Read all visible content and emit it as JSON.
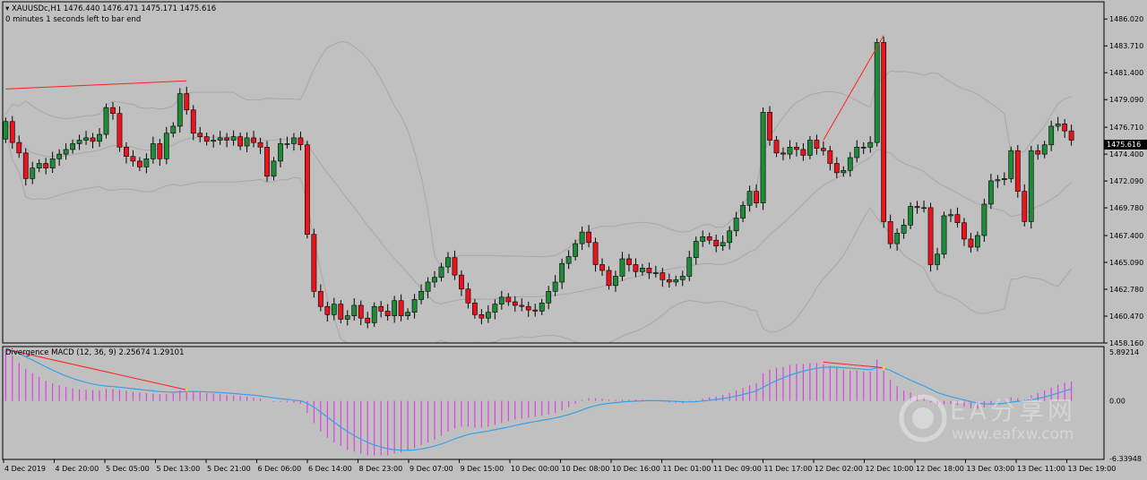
{
  "header": {
    "symbol_line": "XAUUSDc,H1  1476.440 1476.471 1475.171 1475.616",
    "bar_countdown": "0 minutes 1 seconds left to bar end"
  },
  "indicator": {
    "label": "Divergence MACD (12, 36, 9) 2.25674 1.29101"
  },
  "watermark": {
    "text": "EA分享网",
    "url": "www.eafxw.com"
  },
  "colors": {
    "background": "#c0c0c0",
    "bull": "#1f8a3a",
    "bear": "#e8141e",
    "macd_hist": "#e040e0",
    "signal": "#3aa0e8",
    "divergence": "#ff2020",
    "band": "#a8a8a8"
  },
  "chart_data": [
    {
      "type": "candlestick",
      "symbol": "XAUUSDc",
      "timeframe": "H1",
      "ylim": [
        1458.16,
        1487.5
      ],
      "price_ticks": [
        "1486.020",
        "1483.710",
        "1481.400",
        "1479.090",
        "1476.710",
        "1474.400",
        "1472.090",
        "1469.780",
        "1467.400",
        "1465.090",
        "1462.780",
        "1460.470",
        "1458.160"
      ],
      "time_ticks": [
        "4 Dec 2019",
        "4 Dec 20:00",
        "5 Dec 05:00",
        "5 Dec 13:00",
        "5 Dec 21:00",
        "6 Dec 06:00",
        "6 Dec 14:00",
        "8 Dec 23:00",
        "9 Dec 07:00",
        "9 Dec 15:00",
        "10 Dec 00:00",
        "10 Dec 08:00",
        "10 Dec 16:00",
        "11 Dec 01:00",
        "11 Dec 09:00",
        "11 Dec 17:00",
        "12 Dec 02:00",
        "12 Dec 10:00",
        "12 Dec 18:00",
        "13 Dec 03:00",
        "13 Dec 11:00",
        "13 Dec 19:00"
      ],
      "current_price": "1475.616",
      "closes": [
        1477.2,
        1475.4,
        1474.5,
        1472.3,
        1473.2,
        1473.6,
        1473.2,
        1474.0,
        1474.4,
        1474.8,
        1475.3,
        1475.6,
        1475.8,
        1475.5,
        1476.1,
        1478.4,
        1477.9,
        1475.0,
        1474.2,
        1473.8,
        1473.3,
        1474.0,
        1475.3,
        1474.0,
        1476.2,
        1476.8,
        1479.6,
        1478.2,
        1476.2,
        1475.9,
        1475.5,
        1475.6,
        1475.8,
        1475.6,
        1475.9,
        1475.1,
        1475.8,
        1475.4,
        1475.0,
        1472.5,
        1473.8,
        1475.3,
        1475.3,
        1475.8,
        1475.2,
        1467.5,
        1462.6,
        1461.3,
        1460.6,
        1461.5,
        1460.2,
        1460.5,
        1461.4,
        1460.3,
        1459.9,
        1461.3,
        1460.9,
        1460.5,
        1461.8,
        1460.5,
        1460.8,
        1461.9,
        1462.6,
        1463.4,
        1463.8,
        1464.7,
        1465.5,
        1464.0,
        1462.8,
        1461.6,
        1460.6,
        1460.3,
        1460.8,
        1461.5,
        1462.1,
        1461.7,
        1461.4,
        1461.3,
        1461.0,
        1460.9,
        1461.6,
        1462.6,
        1463.4,
        1465.0,
        1465.6,
        1466.7,
        1467.7,
        1466.8,
        1464.9,
        1464.4,
        1463.1,
        1463.9,
        1465.4,
        1464.9,
        1464.3,
        1464.6,
        1464.2,
        1464.2,
        1463.6,
        1463.4,
        1463.6,
        1463.9,
        1465.5,
        1466.9,
        1467.3,
        1467.0,
        1466.5,
        1466.8,
        1467.8,
        1468.9,
        1470.0,
        1471.2,
        1470.2,
        1478.0,
        1475.6,
        1474.5,
        1474.4,
        1475.0,
        1474.8,
        1474.3,
        1475.6,
        1474.9,
        1474.7,
        1473.6,
        1472.8,
        1473.0,
        1474.1,
        1475.0,
        1475.0,
        1475.4,
        1484.0,
        1468.6,
        1466.7,
        1467.6,
        1468.3,
        1469.9,
        1469.8,
        1469.8,
        1464.9,
        1465.8,
        1469.1,
        1469.2,
        1468.5,
        1467.1,
        1466.4,
        1467.4,
        1470.1,
        1472.1,
        1472.2,
        1472.3,
        1474.7,
        1471.2,
        1468.6,
        1474.7,
        1474.4,
        1475.2,
        1476.8,
        1477.0,
        1476.4,
        1475.6
      ],
      "macd_hist": [
        5.5,
        4.9,
        4.1,
        3.5,
        3.0,
        2.6,
        2.2,
        1.9,
        1.7,
        1.5,
        1.35,
        1.25,
        1.2,
        1.15,
        1.15,
        1.3,
        1.3,
        1.2,
        1.1,
        1.0,
        0.9,
        0.85,
        0.8,
        0.75,
        0.75,
        0.85,
        1.15,
        1.15,
        1.05,
        0.95,
        0.85,
        0.8,
        0.75,
        0.65,
        0.6,
        0.5,
        0.45,
        0.35,
        0.25,
        0.0,
        -0.1,
        -0.1,
        -0.15,
        -0.2,
        -0.3,
        -1.3,
        -2.4,
        -3.3,
        -4.0,
        -4.5,
        -4.9,
        -5.3,
        -5.5,
        -5.7,
        -5.9,
        -5.9,
        -5.9,
        -5.9,
        -5.7,
        -5.6,
        -5.4,
        -5.1,
        -4.8,
        -4.5,
        -4.2,
        -3.8,
        -3.3,
        -3.0,
        -2.8,
        -2.8,
        -2.9,
        -2.9,
        -2.8,
        -2.6,
        -2.4,
        -2.2,
        -2.0,
        -1.9,
        -1.8,
        -1.7,
        -1.6,
        -1.5,
        -1.3,
        -1.0,
        -0.7,
        -0.3,
        0.1,
        0.3,
        0.3,
        0.25,
        0.15,
        0.1,
        0.15,
        0.15,
        0.15,
        0.15,
        0.1,
        0.05,
        -0.05,
        -0.15,
        -0.2,
        -0.25,
        -0.15,
        0.05,
        0.25,
        0.4,
        0.5,
        0.65,
        0.85,
        1.1,
        1.4,
        1.7,
        1.9,
        3.0,
        3.4,
        3.6,
        3.7,
        3.9,
        4.0,
        4.0,
        4.1,
        4.1,
        4.0,
        3.8,
        3.6,
        3.4,
        3.3,
        3.3,
        3.2,
        3.2,
        4.5,
        3.3,
        2.3,
        1.6,
        1.1,
        0.9,
        0.65,
        0.4,
        -0.15,
        -0.45,
        -0.35,
        -0.35,
        -0.45,
        -0.6,
        -0.8,
        -0.85,
        -0.7,
        -0.4,
        -0.2,
        -0.05,
        0.4,
        0.3,
        0.15,
        0.6,
        0.85,
        1.1,
        1.45,
        1.75,
        1.95,
        2.1
      ],
      "macd_ylim": [
        -6.33948,
        5.89214
      ],
      "macd_ticks": [
        "5.89214",
        "0.00",
        "-6.33948"
      ]
    }
  ]
}
